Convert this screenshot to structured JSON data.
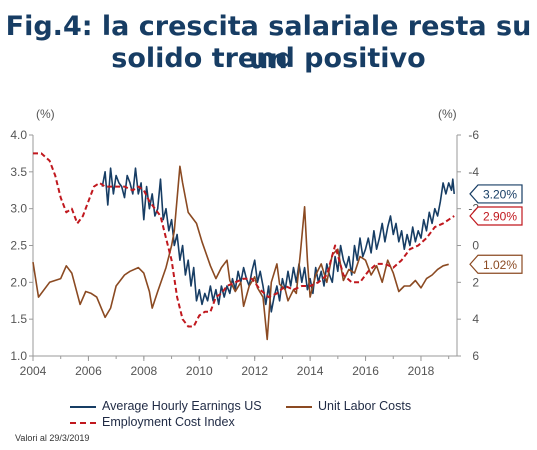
{
  "title_line1": "Fig.4: la crescita salariale resta su un",
  "title_line2": "solido trend positivo",
  "footnote": "Valori al 29/3/2019",
  "chart_data": {
    "type": "line",
    "left_unit": "(%)",
    "right_unit": "(%)",
    "xlim": [
      2004,
      2019.3
    ],
    "ylim": [
      1.0,
      4.0
    ],
    "y2lim": [
      -6,
      6
    ],
    "y2_inverted": true,
    "x_ticks": [
      "2004",
      "2006",
      "2008",
      "2010",
      "2012",
      "2014",
      "2016",
      "2018"
    ],
    "y_ticks": [
      "1.0",
      "1.5",
      "2.0",
      "2.5",
      "3.0",
      "3.5",
      "4.0"
    ],
    "y2_ticks": [
      "-6",
      "-4",
      "-2",
      "0",
      "2",
      "4",
      "6"
    ],
    "colors": {
      "aheus": "#173d64",
      "ulc": "#8b4a22",
      "eci": "#c0181e"
    },
    "series": [
      {
        "name": "Average Hourly Earnings US",
        "key": "aheus",
        "axis": "left",
        "style": "solid",
        "end_label": "3.20%",
        "points": [
          [
            2006.5,
            3.3
          ],
          [
            2006.6,
            3.5
          ],
          [
            2006.7,
            3.05
          ],
          [
            2006.8,
            3.55
          ],
          [
            2006.9,
            3.2
          ],
          [
            2007.0,
            3.45
          ],
          [
            2007.1,
            3.35
          ],
          [
            2007.2,
            3.3
          ],
          [
            2007.3,
            3.15
          ],
          [
            2007.4,
            3.45
          ],
          [
            2007.5,
            3.35
          ],
          [
            2007.6,
            3.2
          ],
          [
            2007.7,
            3.55
          ],
          [
            2007.8,
            3.2
          ],
          [
            2007.9,
            3.35
          ],
          [
            2008.0,
            2.85
          ],
          [
            2008.1,
            3.3
          ],
          [
            2008.2,
            3.0
          ],
          [
            2008.3,
            3.2
          ],
          [
            2008.4,
            2.9
          ],
          [
            2008.5,
            3.0
          ],
          [
            2008.6,
            3.4
          ],
          [
            2008.7,
            2.85
          ],
          [
            2008.8,
            3.0
          ],
          [
            2008.9,
            2.7
          ],
          [
            2009.0,
            2.85
          ],
          [
            2009.1,
            2.5
          ],
          [
            2009.2,
            2.65
          ],
          [
            2009.3,
            2.3
          ],
          [
            2009.4,
            2.5
          ],
          [
            2009.5,
            2.1
          ],
          [
            2009.6,
            2.3
          ],
          [
            2009.7,
            1.95
          ],
          [
            2009.8,
            2.2
          ],
          [
            2009.9,
            1.75
          ],
          [
            2010.0,
            1.9
          ],
          [
            2010.1,
            1.7
          ],
          [
            2010.2,
            1.85
          ],
          [
            2010.3,
            1.75
          ],
          [
            2010.4,
            1.95
          ],
          [
            2010.5,
            1.75
          ],
          [
            2010.6,
            1.9
          ],
          [
            2010.7,
            1.7
          ],
          [
            2010.8,
            1.95
          ],
          [
            2010.9,
            1.8
          ],
          [
            2011.0,
            1.95
          ],
          [
            2011.1,
            1.85
          ],
          [
            2011.2,
            2.05
          ],
          [
            2011.3,
            1.9
          ],
          [
            2011.4,
            2.15
          ],
          [
            2011.5,
            2.0
          ],
          [
            2011.6,
            2.2
          ],
          [
            2011.7,
            2.05
          ],
          [
            2011.8,
            1.95
          ],
          [
            2011.9,
            2.15
          ],
          [
            2012.0,
            2.3
          ],
          [
            2012.1,
            2.0
          ],
          [
            2012.2,
            2.15
          ],
          [
            2012.3,
            1.95
          ],
          [
            2012.4,
            1.7
          ],
          [
            2012.5,
            1.95
          ],
          [
            2012.6,
            1.6
          ],
          [
            2012.7,
            1.8
          ],
          [
            2012.8,
            1.95
          ],
          [
            2012.9,
            1.75
          ],
          [
            2013.0,
            2.05
          ],
          [
            2013.1,
            1.9
          ],
          [
            2013.2,
            2.15
          ],
          [
            2013.3,
            1.95
          ],
          [
            2013.4,
            2.2
          ],
          [
            2013.5,
            2.0
          ],
          [
            2013.6,
            2.25
          ],
          [
            2013.7,
            2.0
          ],
          [
            2013.8,
            2.2
          ],
          [
            2013.9,
            1.9
          ],
          [
            2014.0,
            2.05
          ],
          [
            2014.1,
            1.85
          ],
          [
            2014.2,
            2.2
          ],
          [
            2014.3,
            2.0
          ],
          [
            2014.4,
            2.15
          ],
          [
            2014.5,
            1.95
          ],
          [
            2014.6,
            2.25
          ],
          [
            2014.7,
            2.1
          ],
          [
            2014.8,
            2.0
          ],
          [
            2014.9,
            2.35
          ],
          [
            2015.0,
            2.15
          ],
          [
            2015.1,
            2.5
          ],
          [
            2015.2,
            2.3
          ],
          [
            2015.3,
            2.2
          ],
          [
            2015.4,
            2.35
          ],
          [
            2015.5,
            2.1
          ],
          [
            2015.6,
            2.5
          ],
          [
            2015.7,
            2.3
          ],
          [
            2015.8,
            2.6
          ],
          [
            2015.9,
            2.35
          ],
          [
            2016.0,
            2.45
          ],
          [
            2016.1,
            2.6
          ],
          [
            2016.2,
            2.4
          ],
          [
            2016.3,
            2.7
          ],
          [
            2016.4,
            2.45
          ],
          [
            2016.5,
            2.6
          ],
          [
            2016.6,
            2.8
          ],
          [
            2016.7,
            2.55
          ],
          [
            2016.8,
            2.75
          ],
          [
            2016.9,
            2.9
          ],
          [
            2017.0,
            2.65
          ],
          [
            2017.1,
            2.8
          ],
          [
            2017.2,
            2.55
          ],
          [
            2017.3,
            2.7
          ],
          [
            2017.4,
            2.45
          ],
          [
            2017.5,
            2.65
          ],
          [
            2017.6,
            2.5
          ],
          [
            2017.7,
            2.75
          ],
          [
            2017.8,
            2.55
          ],
          [
            2017.9,
            2.7
          ],
          [
            2018.0,
            2.6
          ],
          [
            2018.1,
            2.85
          ],
          [
            2018.2,
            2.7
          ],
          [
            2018.3,
            2.95
          ],
          [
            2018.4,
            2.8
          ],
          [
            2018.5,
            3.0
          ],
          [
            2018.6,
            2.9
          ],
          [
            2018.7,
            3.1
          ],
          [
            2018.8,
            3.35
          ],
          [
            2018.9,
            3.2
          ],
          [
            2019.0,
            3.35
          ],
          [
            2019.1,
            3.25
          ],
          [
            2019.15,
            3.4
          ],
          [
            2019.2,
            3.2
          ]
        ]
      },
      {
        "name": "Unit Labor Costs",
        "key": "ulc",
        "axis": "right",
        "style": "solid",
        "end_label": "1.02%",
        "points": [
          [
            2004.0,
            0.9
          ],
          [
            2004.2,
            2.8
          ],
          [
            2004.6,
            2.0
          ],
          [
            2005.0,
            1.8
          ],
          [
            2005.2,
            1.1
          ],
          [
            2005.4,
            1.5
          ],
          [
            2005.7,
            3.2
          ],
          [
            2005.9,
            2.5
          ],
          [
            2006.1,
            2.6
          ],
          [
            2006.3,
            2.8
          ],
          [
            2006.6,
            3.9
          ],
          [
            2006.8,
            3.4
          ],
          [
            2007.0,
            2.2
          ],
          [
            2007.3,
            1.6
          ],
          [
            2007.5,
            1.4
          ],
          [
            2007.8,
            1.2
          ],
          [
            2008.0,
            1.5
          ],
          [
            2008.2,
            2.5
          ],
          [
            2008.3,
            3.4
          ],
          [
            2008.5,
            2.5
          ],
          [
            2008.8,
            1.2
          ],
          [
            2009.0,
            0.0
          ],
          [
            2009.1,
            -0.8
          ],
          [
            2009.3,
            -4.3
          ],
          [
            2009.4,
            -3.4
          ],
          [
            2009.6,
            -1.8
          ],
          [
            2009.9,
            -1.2
          ],
          [
            2010.1,
            -0.2
          ],
          [
            2010.4,
            1.1
          ],
          [
            2010.6,
            1.8
          ],
          [
            2010.8,
            1.2
          ],
          [
            2011.0,
            0.8
          ],
          [
            2011.1,
            1.9
          ],
          [
            2011.3,
            2.5
          ],
          [
            2011.5,
            2.0
          ],
          [
            2011.6,
            3.3
          ],
          [
            2011.8,
            2.2
          ],
          [
            2012.0,
            1.7
          ],
          [
            2012.1,
            2.3
          ],
          [
            2012.3,
            2.8
          ],
          [
            2012.45,
            5.1
          ],
          [
            2012.6,
            2.0
          ],
          [
            2012.8,
            1.0
          ],
          [
            2012.9,
            2.1
          ],
          [
            2013.1,
            2.4
          ],
          [
            2013.2,
            3.0
          ],
          [
            2013.4,
            2.4
          ],
          [
            2013.5,
            2.6
          ],
          [
            2013.65,
            0.4
          ],
          [
            2013.8,
            -2.1
          ],
          [
            2013.9,
            0.8
          ],
          [
            2014.0,
            2.8
          ],
          [
            2014.2,
            1.6
          ],
          [
            2014.4,
            1.0
          ],
          [
            2014.6,
            2.0
          ],
          [
            2014.8,
            0.5
          ],
          [
            2015.0,
            0.2
          ],
          [
            2015.2,
            1.9
          ],
          [
            2015.4,
            1.3
          ],
          [
            2015.6,
            1.5
          ],
          [
            2015.8,
            0.6
          ],
          [
            2016.0,
            0.8
          ],
          [
            2016.2,
            1.6
          ],
          [
            2016.4,
            1.1
          ],
          [
            2016.6,
            2.0
          ],
          [
            2016.8,
            0.8
          ],
          [
            2017.0,
            1.5
          ],
          [
            2017.2,
            2.5
          ],
          [
            2017.4,
            2.2
          ],
          [
            2017.6,
            2.2
          ],
          [
            2017.8,
            1.9
          ],
          [
            2018.0,
            2.3
          ],
          [
            2018.2,
            1.8
          ],
          [
            2018.4,
            1.6
          ],
          [
            2018.6,
            1.3
          ],
          [
            2018.8,
            1.1
          ],
          [
            2019.0,
            1.02
          ]
        ]
      },
      {
        "name": "Employment Cost Index",
        "key": "eci",
        "axis": "left",
        "style": "dashed",
        "end_label": "2.90%",
        "points": [
          [
            2004.0,
            3.75
          ],
          [
            2004.3,
            3.75
          ],
          [
            2004.6,
            3.65
          ],
          [
            2004.8,
            3.45
          ],
          [
            2005.0,
            3.15
          ],
          [
            2005.2,
            2.95
          ],
          [
            2005.4,
            3.0
          ],
          [
            2005.6,
            2.8
          ],
          [
            2005.8,
            2.9
          ],
          [
            2006.0,
            3.1
          ],
          [
            2006.2,
            3.3
          ],
          [
            2006.4,
            3.35
          ],
          [
            2006.6,
            3.3
          ],
          [
            2006.8,
            3.3
          ],
          [
            2007.0,
            3.3
          ],
          [
            2007.3,
            3.3
          ],
          [
            2007.6,
            3.25
          ],
          [
            2007.8,
            3.3
          ],
          [
            2008.0,
            3.25
          ],
          [
            2008.2,
            3.1
          ],
          [
            2008.4,
            3.0
          ],
          [
            2008.6,
            2.9
          ],
          [
            2008.8,
            2.6
          ],
          [
            2009.0,
            2.3
          ],
          [
            2009.2,
            1.8
          ],
          [
            2009.4,
            1.5
          ],
          [
            2009.6,
            1.4
          ],
          [
            2009.8,
            1.4
          ],
          [
            2010.0,
            1.55
          ],
          [
            2010.2,
            1.6
          ],
          [
            2010.4,
            1.6
          ],
          [
            2010.6,
            1.8
          ],
          [
            2010.8,
            1.85
          ],
          [
            2011.0,
            1.95
          ],
          [
            2011.3,
            2.0
          ],
          [
            2011.6,
            2.05
          ],
          [
            2011.9,
            2.05
          ],
          [
            2012.2,
            1.9
          ],
          [
            2012.5,
            1.8
          ],
          [
            2012.8,
            1.85
          ],
          [
            2013.1,
            1.95
          ],
          [
            2013.4,
            1.9
          ],
          [
            2013.7,
            1.95
          ],
          [
            2014.0,
            1.95
          ],
          [
            2014.3,
            2.0
          ],
          [
            2014.6,
            2.1
          ],
          [
            2014.9,
            2.5
          ],
          [
            2015.2,
            2.1
          ],
          [
            2015.5,
            2.0
          ],
          [
            2015.8,
            2.0
          ],
          [
            2016.1,
            2.15
          ],
          [
            2016.4,
            2.25
          ],
          [
            2016.7,
            2.25
          ],
          [
            2017.0,
            2.2
          ],
          [
            2017.3,
            2.3
          ],
          [
            2017.6,
            2.45
          ],
          [
            2017.9,
            2.5
          ],
          [
            2018.2,
            2.6
          ],
          [
            2018.5,
            2.75
          ],
          [
            2018.8,
            2.8
          ],
          [
            2019.0,
            2.85
          ],
          [
            2019.2,
            2.9
          ]
        ]
      }
    ]
  }
}
